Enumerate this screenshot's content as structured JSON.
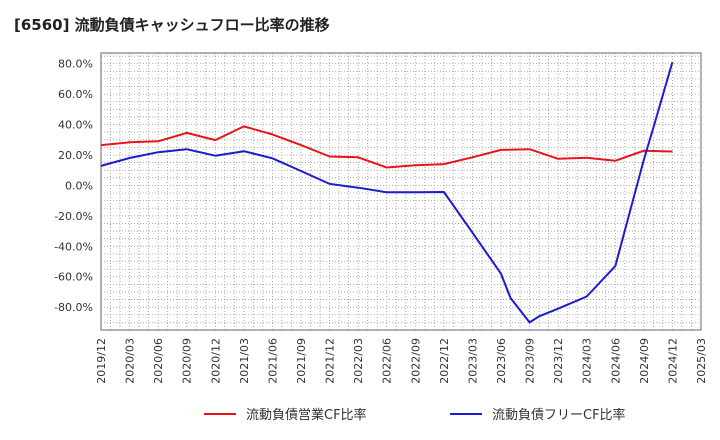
{
  "title": "[6560]  流動負債キャッシュフロー比率の推移",
  "chart_data": {
    "type": "line",
    "title": "[6560]  流動負債キャッシュフロー比率の推移",
    "ylim": [
      -95,
      87
    ],
    "y_ticks": [
      "80.0%",
      "60.0%",
      "40.0%",
      "20.0%",
      "0.0%",
      "-20.0%",
      "-40.0%",
      "-60.0%",
      "-80.0%"
    ],
    "y_tick_values": [
      80,
      60,
      40,
      20,
      0,
      -20,
      -40,
      -60,
      -80
    ],
    "x_ticks": [
      "2019/12",
      "2020/03",
      "2020/06",
      "2020/09",
      "2020/12",
      "2021/03",
      "2021/06",
      "2021/09",
      "2021/12",
      "2022/03",
      "2022/06",
      "2022/09",
      "2022/12",
      "2023/03",
      "2023/06",
      "2023/09",
      "2023/12",
      "2024/03",
      "2024/06",
      "2024/09",
      "2024/12",
      "2025/03"
    ],
    "grid": true,
    "legend_position": "bottom",
    "series": [
      {
        "name": "流動負債営業CF比率",
        "color": "#e8141b",
        "points": [
          [
            "2019/12",
            26.5
          ],
          [
            "2020/03",
            28.3
          ],
          [
            "2020/06",
            29.0
          ],
          [
            "2020/09",
            34.5
          ],
          [
            "2020/12",
            29.8
          ],
          [
            "2021/03",
            38.8
          ],
          [
            "2021/06",
            33.5
          ],
          [
            "2021/09",
            26.5
          ],
          [
            "2021/12",
            19.0
          ],
          [
            "2022/03",
            18.5
          ],
          [
            "2022/06",
            11.8
          ],
          [
            "2022/09",
            13.2
          ],
          [
            "2022/12",
            14.0
          ],
          [
            "2023/03",
            18.5
          ],
          [
            "2023/06",
            23.3
          ],
          [
            "2023/09",
            23.8
          ],
          [
            "2023/12",
            17.5
          ],
          [
            "2024/03",
            18.2
          ],
          [
            "2024/06",
            16.2
          ],
          [
            "2024/09",
            22.8
          ],
          [
            "2024/12",
            22.3
          ]
        ]
      },
      {
        "name": "流動負債フリーCF比率",
        "color": "#1c1ccc",
        "points": [
          [
            "2019/12",
            12.8
          ],
          [
            "2020/03",
            18.0
          ],
          [
            "2020/06",
            21.8
          ],
          [
            "2020/09",
            23.8
          ],
          [
            "2020/12",
            19.5
          ],
          [
            "2021/03",
            22.5
          ],
          [
            "2021/06",
            17.8
          ],
          [
            "2021/09",
            9.5
          ],
          [
            "2021/12",
            1.0
          ],
          [
            "2022/03",
            -1.5
          ],
          [
            "2022/06",
            -4.5
          ],
          [
            "2022/09",
            -4.5
          ],
          [
            "2022/12",
            -4.3
          ],
          [
            "2023/03",
            -31.0
          ],
          [
            "2023/06",
            -58.0
          ],
          [
            "2023/07",
            -74.0
          ],
          [
            "2023/09",
            -90.0
          ],
          [
            "2023/10",
            -86.0
          ],
          [
            "2023/12",
            -81.0
          ],
          [
            "2024/03",
            -73.0
          ],
          [
            "2024/06",
            -53.0
          ],
          [
            "2024/09",
            17.0
          ],
          [
            "2024/10",
            38.0
          ],
          [
            "2024/12",
            81.0
          ]
        ]
      }
    ]
  }
}
